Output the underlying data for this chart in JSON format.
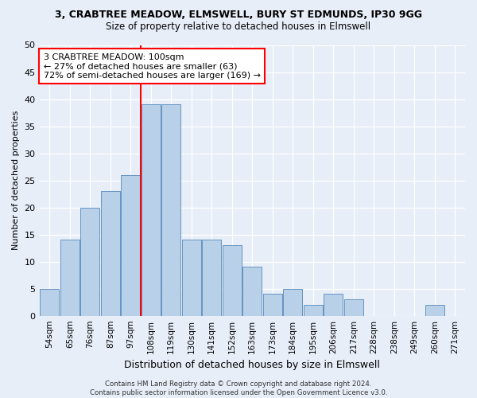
{
  "title": "3, CRABTREE MEADOW, ELMSWELL, BURY ST EDMUNDS, IP30 9GG",
  "subtitle": "Size of property relative to detached houses in Elmswell",
  "xlabel": "Distribution of detached houses by size in Elmswell",
  "ylabel": "Number of detached properties",
  "categories": [
    "54sqm",
    "65sqm",
    "76sqm",
    "87sqm",
    "97sqm",
    "108sqm",
    "119sqm",
    "130sqm",
    "141sqm",
    "152sqm",
    "163sqm",
    "173sqm",
    "184sqm",
    "195sqm",
    "206sqm",
    "217sqm",
    "228sqm",
    "238sqm",
    "249sqm",
    "260sqm",
    "271sqm"
  ],
  "values": [
    5,
    14,
    20,
    23,
    26,
    39,
    39,
    14,
    14,
    13,
    9,
    4,
    5,
    2,
    4,
    3,
    0,
    0,
    0,
    2,
    0
  ],
  "bar_color": "#b8d0e8",
  "bar_edge_color": "#5588bb",
  "vline_x": 4.5,
  "vline_color": "red",
  "ylim": [
    0,
    50
  ],
  "yticks": [
    0,
    5,
    10,
    15,
    20,
    25,
    30,
    35,
    40,
    45,
    50
  ],
  "annotation_text": "3 CRABTREE MEADOW: 100sqm\n← 27% of detached houses are smaller (63)\n72% of semi-detached houses are larger (169) →",
  "annotation_box_color": "white",
  "annotation_box_edgecolor": "red",
  "footer_line1": "Contains HM Land Registry data © Crown copyright and database right 2024.",
  "footer_line2": "Contains public sector information licensed under the Open Government Licence v3.0.",
  "background_color": "#e8eef8",
  "grid_color": "white"
}
